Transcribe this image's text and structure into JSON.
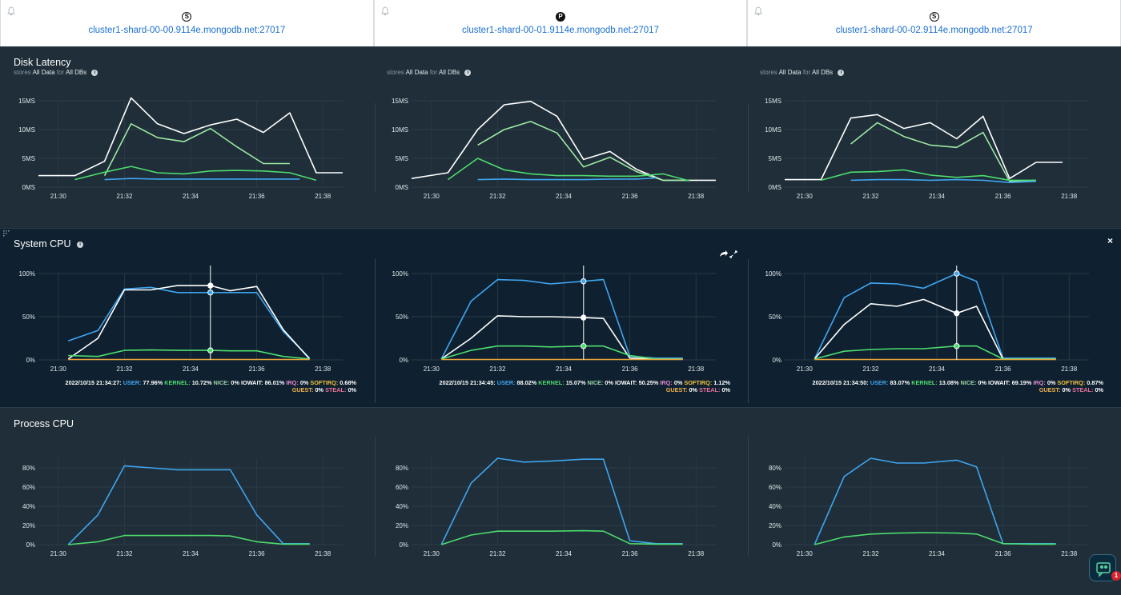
{
  "hosts": [
    {
      "badge": "S",
      "name": "cluster1-shard-00-00.9114e.mongodb.net:27017"
    },
    {
      "badge": "P",
      "name": "cluster1-shard-00-01.9114e.mongodb.net:27017"
    },
    {
      "badge": "S",
      "name": "cluster1-shard-00-02.9114e.mongodb.net:27017"
    }
  ],
  "disk": {
    "title": "Disk Latency",
    "subtitle": {
      "pre": "stores",
      "data": "All Data",
      "mid": "for",
      "dbs": "All DBs"
    }
  },
  "system": {
    "title": "System CPU",
    "close": "×",
    "tooltips": [
      {
        "date": "2022/10/15 21:34:27:",
        "user": "77.96%",
        "kernel": "10.72%",
        "nice": "0%",
        "iowait": "86.01%",
        "irq": "0%",
        "softirq": "0.68%",
        "guest": "0%",
        "steal": "0%"
      },
      {
        "date": "2022/10/15 21:34:45:",
        "user": "88.02%",
        "kernel": "15.07%",
        "nice": "0%",
        "iowait": "50.25%",
        "irq": "0%",
        "softirq": "1.12%",
        "guest": "0%",
        "steal": "0%"
      },
      {
        "date": "2022/10/15 21:34:50:",
        "user": "83.07%",
        "kernel": "13.08%",
        "nice": "0%",
        "iowait": "69.19%",
        "irq": "0%",
        "softirq": "0.87%",
        "guest": "0%",
        "steal": "0%"
      }
    ],
    "labels": {
      "user": "USER:",
      "kernel": "KERNEL:",
      "nice": "NICE:",
      "iowait": "IOWAIT:",
      "irq": "IRQ:",
      "softirq": "SOFTIRQ:",
      "guest": "GUEST:",
      "steal": "STEAL:"
    }
  },
  "process": {
    "title": "Process CPU"
  },
  "chat": {
    "badge": "1"
  },
  "colors": {
    "blue": "#3fa5f0",
    "green": "#4ddc6e",
    "lightgreen": "#9de8a4",
    "white": "#ffffff",
    "orange": "#e8a33b"
  },
  "chart_data": [
    {
      "panel": "disk",
      "type": "line",
      "yticks": [
        "0MS",
        "5MS",
        "10MS",
        "15MS"
      ],
      "ylim": [
        0,
        15
      ],
      "xticks": [
        "21:30",
        "21:32",
        "21:34",
        "21:36",
        "21:38"
      ],
      "series": [
        {
          "color": "#ffffff",
          "x": [
            29.4,
            30.5,
            31.4,
            32.2,
            33.0,
            33.8,
            34.6,
            35.4,
            36.2,
            37.0,
            37.8,
            38.6
          ],
          "y": [
            2,
            2,
            4.5,
            15.5,
            11,
            9.3,
            10.8,
            11.8,
            9.5,
            12.9,
            2.5,
            2.5
          ]
        },
        {
          "color": "#9de8a4",
          "x": [
            31.4,
            32.2,
            33.0,
            33.8,
            34.6,
            35.4,
            36.2,
            37.0
          ],
          "y": [
            2,
            11,
            8.6,
            7.9,
            10.2,
            7,
            4.1,
            4.1
          ]
        },
        {
          "color": "#4ddc6e",
          "x": [
            30.5,
            31.4,
            32.2,
            33.0,
            33.8,
            34.6,
            35.4,
            36.2,
            37.0,
            37.8
          ],
          "y": [
            1.3,
            2.6,
            3.6,
            2.5,
            2.3,
            2.8,
            2.9,
            2.8,
            2.5,
            1.2
          ]
        },
        {
          "color": "#3fa5f0",
          "x": [
            31.4,
            32.2,
            33.0,
            33.8,
            34.6,
            35.4,
            36.2,
            37.0,
            37.3
          ],
          "y": [
            1.3,
            1.5,
            1.4,
            1.4,
            1.4,
            1.4,
            1.4,
            1.4,
            1.4
          ]
        }
      ]
    },
    {
      "panel": "disk",
      "type": "line",
      "yticks": [
        "0MS",
        "5MS",
        "10MS",
        "15MS"
      ],
      "ylim": [
        0,
        15
      ],
      "xticks": [
        "21:30",
        "21:32",
        "21:34",
        "21:36",
        "21:38"
      ],
      "series": [
        {
          "color": "#ffffff",
          "x": [
            29.4,
            30.5,
            31.4,
            32.2,
            33.0,
            33.8,
            34.6,
            35.4,
            36.2,
            37.0,
            37.8,
            38.6
          ],
          "y": [
            1.5,
            2.5,
            10,
            14.3,
            14.9,
            12.3,
            4.8,
            6.2,
            3.1,
            1.2,
            1.2,
            1.2
          ]
        },
        {
          "color": "#9de8a4",
          "x": [
            31.4,
            32.2,
            33.0,
            33.8,
            34.6,
            35.4,
            36.2,
            37.0,
            37.8
          ],
          "y": [
            7.3,
            10,
            11.4,
            9.4,
            3.5,
            5.2,
            2.7,
            1.2,
            1.2
          ]
        },
        {
          "color": "#4ddc6e",
          "x": [
            30.5,
            31.4,
            32.2,
            33.0,
            33.8,
            34.6,
            35.4,
            36.2,
            37.0,
            37.8
          ],
          "y": [
            1.3,
            5,
            3,
            2.3,
            2,
            2,
            1.9,
            1.9,
            2.3,
            1.1
          ]
        },
        {
          "color": "#3fa5f0",
          "x": [
            31.4,
            32.2,
            33.0,
            33.8,
            34.6,
            35.4,
            36.2,
            36.8
          ],
          "y": [
            1.3,
            1.4,
            1.3,
            1.3,
            1.3,
            1.4,
            1.4,
            1.6
          ]
        }
      ]
    },
    {
      "panel": "disk",
      "type": "line",
      "yticks": [
        "0MS",
        "5MS",
        "10MS",
        "15MS"
      ],
      "ylim": [
        0,
        15
      ],
      "xticks": [
        "21:30",
        "21:32",
        "21:34",
        "21:36",
        "21:38"
      ],
      "series": [
        {
          "color": "#ffffff",
          "x": [
            29.4,
            30.5,
            31.4,
            32.2,
            33.0,
            33.8,
            34.6,
            35.4,
            36.2,
            37.0,
            37.8
          ],
          "y": [
            1.3,
            1.3,
            12,
            12.6,
            10.2,
            11.2,
            8.4,
            12.3,
            1.5,
            4.3,
            4.3
          ]
        },
        {
          "color": "#9de8a4",
          "x": [
            31.4,
            32.2,
            33.0,
            33.8,
            34.6,
            35.4,
            36.2,
            37.0
          ],
          "y": [
            7.5,
            11.2,
            8.8,
            7.3,
            6.9,
            9.5,
            1,
            1.2
          ]
        },
        {
          "color": "#4ddc6e",
          "x": [
            30.5,
            31.4,
            32.2,
            33.0,
            33.8,
            34.6,
            35.4,
            36.2,
            37.0
          ],
          "y": [
            1.2,
            2.6,
            2.7,
            3,
            2.1,
            1.7,
            2,
            1.2,
            1.2
          ]
        },
        {
          "color": "#3fa5f0",
          "x": [
            31.4,
            32.2,
            33.0,
            33.8,
            34.6,
            35.4,
            36.2,
            37.0
          ],
          "y": [
            1.2,
            1.3,
            1.3,
            1.2,
            1.3,
            1.2,
            0.8,
            1
          ]
        }
      ]
    },
    {
      "panel": "system",
      "type": "line",
      "yticks": [
        "0%",
        "50%",
        "100%"
      ],
      "ylim": [
        0,
        100
      ],
      "xticks": [
        "21:30",
        "21:32",
        "21:34",
        "21:36",
        "21:38"
      ],
      "cursor_x": 34.6,
      "series": [
        {
          "color": "#3fa5f0",
          "x": [
            30.3,
            31.2,
            32.0,
            32.8,
            33.6,
            34.6,
            35.2,
            36.0,
            36.8,
            37.6
          ],
          "y": [
            22,
            34,
            82,
            84,
            78,
            78,
            78,
            78,
            33,
            2
          ]
        },
        {
          "color": "#ffffff",
          "x": [
            30.3,
            31.2,
            32.0,
            32.8,
            33.6,
            34.6,
            35.2,
            36.0,
            36.8,
            37.6
          ],
          "y": [
            1,
            25,
            81,
            81,
            86,
            86,
            80,
            85,
            35,
            1
          ]
        },
        {
          "color": "#4ddc6e",
          "x": [
            30.3,
            31.2,
            32.0,
            32.8,
            33.6,
            34.6,
            35.2,
            36.0,
            36.8,
            37.6
          ],
          "y": [
            5,
            4,
            11,
            11.5,
            11,
            11,
            10.5,
            10.5,
            4,
            1
          ]
        },
        {
          "color": "#e8a33b",
          "x": [
            30.3,
            37.6
          ],
          "y": [
            0.5,
            0.5
          ]
        }
      ]
    },
    {
      "panel": "system",
      "type": "line",
      "yticks": [
        "0%",
        "50%",
        "100%"
      ],
      "ylim": [
        0,
        100
      ],
      "xticks": [
        "21:30",
        "21:32",
        "21:34",
        "21:36",
        "21:38"
      ],
      "cursor_x": 34.6,
      "series": [
        {
          "color": "#3fa5f0",
          "x": [
            30.3,
            31.2,
            32.0,
            32.8,
            33.6,
            34.6,
            35.2,
            36.0,
            36.8,
            37.6
          ],
          "y": [
            1,
            68,
            93,
            92,
            88,
            91,
            93,
            4,
            2,
            2
          ]
        },
        {
          "color": "#ffffff",
          "x": [
            30.3,
            31.2,
            32.0,
            32.8,
            33.6,
            34.6,
            35.2,
            36.0,
            36.8,
            37.6
          ],
          "y": [
            1,
            25,
            51,
            50,
            50,
            49,
            48,
            2,
            1,
            1
          ]
        },
        {
          "color": "#4ddc6e",
          "x": [
            30.3,
            31.2,
            32.0,
            32.8,
            33.6,
            34.6,
            35.2,
            36.0,
            36.8,
            37.6
          ],
          "y": [
            1,
            11,
            16,
            16,
            15,
            16,
            16,
            5,
            1,
            1
          ]
        },
        {
          "color": "#e8a33b",
          "x": [
            30.3,
            37.6
          ],
          "y": [
            0.5,
            0.5
          ]
        }
      ]
    },
    {
      "panel": "system",
      "type": "line",
      "yticks": [
        "0%",
        "50%",
        "100%"
      ],
      "ylim": [
        0,
        100
      ],
      "xticks": [
        "21:30",
        "21:32",
        "21:34",
        "21:36",
        "21:38"
      ],
      "cursor_x": 34.6,
      "series": [
        {
          "color": "#3fa5f0",
          "x": [
            30.3,
            31.2,
            32.0,
            32.8,
            33.6,
            34.6,
            35.2,
            36.0,
            36.8,
            37.6
          ],
          "y": [
            1,
            72,
            89,
            88,
            83,
            100,
            91,
            2,
            2,
            2
          ]
        },
        {
          "color": "#ffffff",
          "x": [
            30.3,
            31.2,
            32.0,
            32.8,
            33.6,
            34.6,
            35.2,
            36.0,
            36.8,
            37.6
          ],
          "y": [
            1,
            41,
            65,
            62,
            70,
            54,
            62,
            1,
            1,
            1
          ]
        },
        {
          "color": "#4ddc6e",
          "x": [
            30.3,
            31.2,
            32.0,
            32.8,
            33.6,
            34.6,
            35.2,
            36.0,
            36.8,
            37.6
          ],
          "y": [
            1,
            10,
            12,
            13,
            13,
            16,
            16,
            1,
            1,
            1
          ]
        },
        {
          "color": "#e8a33b",
          "x": [
            30.3,
            37.6
          ],
          "y": [
            0.5,
            0.5
          ]
        }
      ]
    },
    {
      "panel": "process",
      "type": "line",
      "yticks": [
        "0%",
        "20%",
        "40%",
        "60%",
        "80%"
      ],
      "ylim": [
        0,
        90
      ],
      "xticks": [
        "21:30",
        "21:32",
        "21:34",
        "21:36",
        "21:38"
      ],
      "series": [
        {
          "color": "#3fa5f0",
          "x": [
            30.3,
            31.2,
            32.0,
            32.8,
            33.6,
            34.6,
            35.2,
            36.0,
            36.8,
            37.6
          ],
          "y": [
            0,
            31,
            82,
            80,
            78,
            78,
            78,
            31,
            1,
            1
          ]
        },
        {
          "color": "#4ddc6e",
          "x": [
            30.3,
            31.2,
            32.0,
            32.8,
            33.6,
            34.6,
            35.2,
            36.0,
            36.8,
            37.6
          ],
          "y": [
            0,
            3,
            9.5,
            9.5,
            9.5,
            9.5,
            9,
            3,
            0.5,
            0.5
          ]
        }
      ]
    },
    {
      "panel": "process",
      "type": "line",
      "yticks": [
        "0%",
        "20%",
        "40%",
        "60%",
        "80%"
      ],
      "ylim": [
        0,
        90
      ],
      "xticks": [
        "21:30",
        "21:32",
        "21:34",
        "21:36",
        "21:38"
      ],
      "series": [
        {
          "color": "#3fa5f0",
          "x": [
            30.3,
            31.2,
            32.0,
            32.8,
            33.6,
            34.6,
            35.2,
            36.0,
            36.8,
            37.6
          ],
          "y": [
            0,
            64,
            90,
            86,
            87,
            89,
            89,
            4,
            1,
            1
          ]
        },
        {
          "color": "#4ddc6e",
          "x": [
            30.3,
            31.2,
            32.0,
            32.8,
            33.6,
            34.6,
            35.2,
            36.0,
            36.8,
            37.6
          ],
          "y": [
            0,
            10,
            14,
            14,
            14,
            14.5,
            14,
            1,
            0.5,
            0.5
          ]
        }
      ]
    },
    {
      "panel": "process",
      "type": "line",
      "yticks": [
        "0%",
        "20%",
        "40%",
        "60%",
        "80%"
      ],
      "ylim": [
        0,
        90
      ],
      "xticks": [
        "21:30",
        "21:32",
        "21:34",
        "21:36",
        "21:38"
      ],
      "series": [
        {
          "color": "#3fa5f0",
          "x": [
            30.3,
            31.2,
            32.0,
            32.8,
            33.6,
            34.6,
            35.2,
            36.0,
            36.8,
            37.6
          ],
          "y": [
            0,
            71,
            90,
            85,
            85,
            88,
            81,
            1,
            1,
            1
          ]
        },
        {
          "color": "#4ddc6e",
          "x": [
            30.3,
            31.2,
            32.0,
            32.8,
            33.6,
            34.6,
            35.2,
            36.0,
            36.8,
            37.6
          ],
          "y": [
            0,
            8,
            11,
            12,
            12.5,
            12,
            11,
            1,
            0.5,
            0.5
          ]
        }
      ]
    }
  ]
}
